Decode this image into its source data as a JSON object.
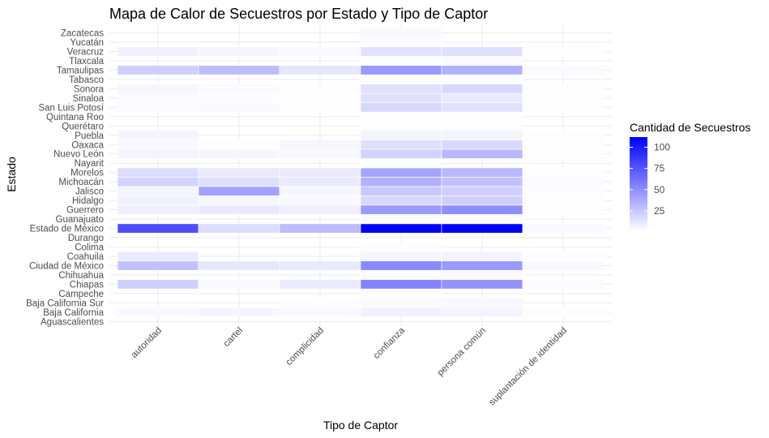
{
  "chart_data": {
    "type": "heatmap",
    "title": "Mapa de Calor de Secuestros por Estado y Tipo de Captor",
    "xlabel": "Tipo de Captor",
    "ylabel": "Estado",
    "x_categories": [
      "autoridad",
      "cartel",
      "complicidad",
      "confianza",
      "persona común",
      "suplantación de identidad"
    ],
    "y_categories": [
      "Aguascalientes",
      "Baja California",
      "Baja California Sur",
      "Campeche",
      "Chiapas",
      "Chihuahua",
      "Ciudad de México",
      "Coahuila",
      "Colima",
      "Durango",
      "Estado de México",
      "Guanajuato",
      "Guerrero",
      "Hidalgo",
      "Jalisco",
      "Michoacán",
      "Morelos",
      "Nayarit",
      "Nuevo León",
      "Oaxaca",
      "Puebla",
      "Querétaro",
      "Quintana Roo",
      "San Luis Potosí",
      "Sinaloa",
      "Sonora",
      "Tabasco",
      "Tamaulipas",
      "Tlaxcala",
      "Veracruz",
      "Yucatán",
      "Zacatecas"
    ],
    "values": [
      [
        null,
        null,
        null,
        null,
        null,
        null
      ],
      [
        4,
        5,
        4,
        7,
        6,
        2
      ],
      [
        null,
        null,
        2,
        3,
        4,
        null
      ],
      [
        null,
        null,
        null,
        2,
        null,
        null
      ],
      [
        22,
        4,
        10,
        55,
        48,
        3
      ],
      [
        null,
        null,
        null,
        3,
        3,
        null
      ],
      [
        28,
        12,
        10,
        52,
        45,
        4
      ],
      [
        10,
        null,
        null,
        5,
        6,
        2
      ],
      [
        null,
        null,
        null,
        2,
        null,
        null
      ],
      [
        null,
        null,
        null,
        null,
        null,
        null
      ],
      [
        78,
        16,
        30,
        112,
        112,
        4
      ],
      [
        null,
        null,
        null,
        3,
        3,
        null
      ],
      [
        8,
        10,
        8,
        45,
        50,
        2
      ],
      [
        8,
        5,
        4,
        18,
        22,
        2
      ],
      [
        6,
        42,
        5,
        25,
        22,
        2
      ],
      [
        20,
        16,
        10,
        35,
        28,
        3
      ],
      [
        16,
        10,
        10,
        40,
        32,
        2
      ],
      [
        null,
        null,
        null,
        2,
        null,
        null
      ],
      [
        6,
        5,
        4,
        20,
        32,
        2
      ],
      [
        4,
        2,
        5,
        15,
        18,
        2
      ],
      [
        6,
        null,
        null,
        6,
        6,
        2
      ],
      [
        null,
        null,
        null,
        2,
        2,
        null
      ],
      [
        null,
        null,
        null,
        2,
        2,
        null
      ],
      [
        3,
        4,
        2,
        18,
        14,
        2
      ],
      [
        3,
        2,
        2,
        14,
        10,
        2
      ],
      [
        5,
        3,
        2,
        14,
        18,
        2
      ],
      [
        null,
        null,
        null,
        2,
        2,
        null
      ],
      [
        22,
        30,
        12,
        45,
        35,
        3
      ],
      [
        null,
        null,
        null,
        2,
        3,
        null
      ],
      [
        7,
        5,
        4,
        14,
        15,
        2
      ],
      [
        null,
        null,
        null,
        2,
        null,
        null
      ],
      [
        null,
        null,
        null,
        4,
        null,
        null
      ]
    ],
    "color_low": "#ffffff",
    "color_high": "#0000ff",
    "legend_title": "Cantidad de Secuestros",
    "legend_ticks": [
      25,
      50,
      75,
      100
    ],
    "legend_range": [
      1,
      112
    ],
    "legend_position": "right",
    "grid": true
  }
}
